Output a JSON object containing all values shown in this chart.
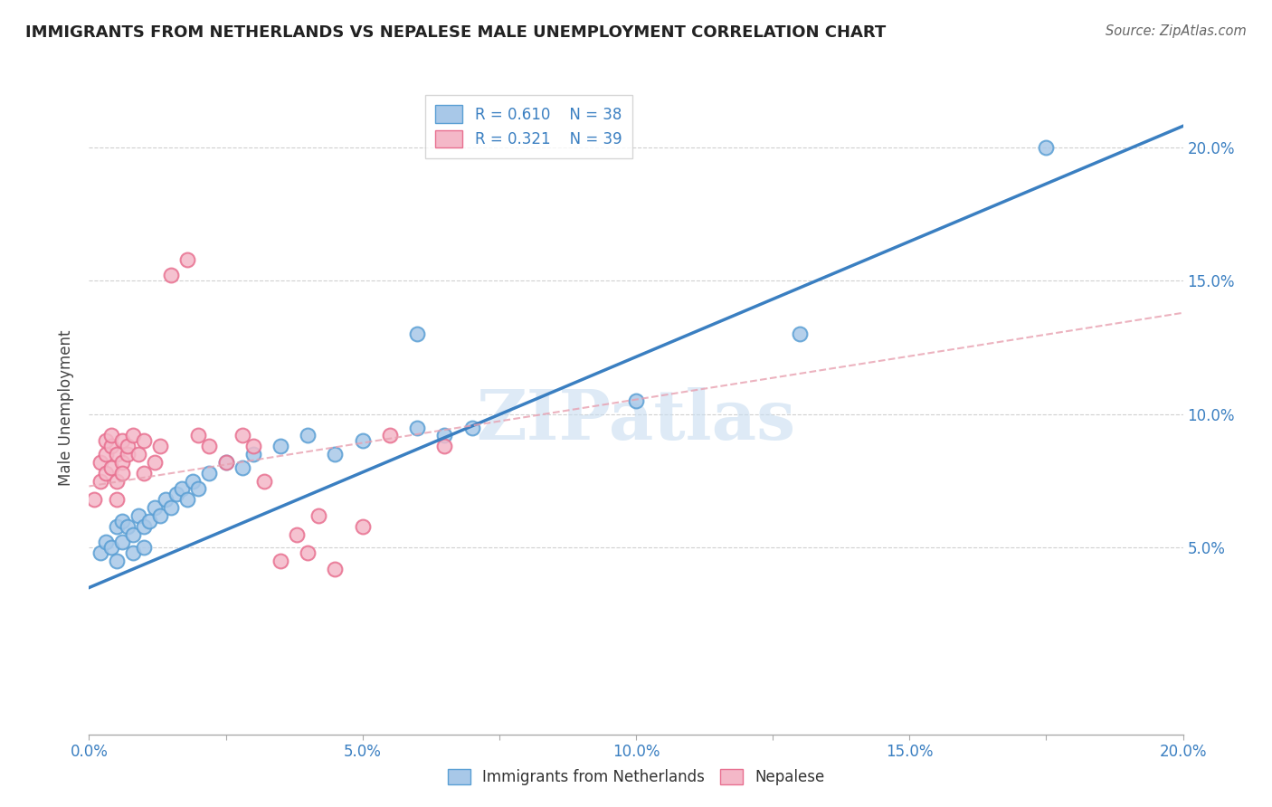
{
  "title": "IMMIGRANTS FROM NETHERLANDS VS NEPALESE MALE UNEMPLOYMENT CORRELATION CHART",
  "source": "Source: ZipAtlas.com",
  "ylabel": "Male Unemployment",
  "xlim": [
    0.0,
    0.2
  ],
  "ylim": [
    -0.02,
    0.225
  ],
  "plot_ylim": [
    -0.02,
    0.225
  ],
  "xtick_labels": [
    "0.0%",
    "",
    "5.0%",
    "",
    "10.0%",
    "",
    "15.0%",
    "",
    "20.0%"
  ],
  "xtick_vals": [
    0.0,
    0.025,
    0.05,
    0.075,
    0.1,
    0.125,
    0.15,
    0.175,
    0.2
  ],
  "xtick_display_labels": [
    "0.0%",
    "20.0%"
  ],
  "xtick_display_vals": [
    0.0,
    0.2
  ],
  "ytick_labels": [
    "5.0%",
    "10.0%",
    "15.0%",
    "20.0%"
  ],
  "ytick_vals": [
    0.05,
    0.1,
    0.15,
    0.2
  ],
  "legend_r_blue": "R = 0.610",
  "legend_n_blue": "N = 38",
  "legend_r_pink": "R = 0.321",
  "legend_n_pink": "N = 39",
  "legend_label_blue": "Immigrants from Netherlands",
  "legend_label_pink": "Nepalese",
  "watermark": "ZIPatlas",
  "blue_color": "#a8c8e8",
  "blue_edge_color": "#5a9fd4",
  "pink_color": "#f4b8c8",
  "pink_edge_color": "#e87090",
  "blue_line_color": "#3a7fc1",
  "pink_line_color": "#e8a0b0",
  "grid_color": "#d0d0d0",
  "bg_color": "#ffffff",
  "text_color_blue": "#3a7fc1",
  "blue_scatter": [
    [
      0.002,
      0.048
    ],
    [
      0.003,
      0.052
    ],
    [
      0.004,
      0.05
    ],
    [
      0.005,
      0.058
    ],
    [
      0.005,
      0.045
    ],
    [
      0.006,
      0.06
    ],
    [
      0.006,
      0.052
    ],
    [
      0.007,
      0.058
    ],
    [
      0.008,
      0.055
    ],
    [
      0.008,
      0.048
    ],
    [
      0.009,
      0.062
    ],
    [
      0.01,
      0.058
    ],
    [
      0.01,
      0.05
    ],
    [
      0.011,
      0.06
    ],
    [
      0.012,
      0.065
    ],
    [
      0.013,
      0.062
    ],
    [
      0.014,
      0.068
    ],
    [
      0.015,
      0.065
    ],
    [
      0.016,
      0.07
    ],
    [
      0.017,
      0.072
    ],
    [
      0.018,
      0.068
    ],
    [
      0.019,
      0.075
    ],
    [
      0.02,
      0.072
    ],
    [
      0.022,
      0.078
    ],
    [
      0.025,
      0.082
    ],
    [
      0.028,
      0.08
    ],
    [
      0.03,
      0.085
    ],
    [
      0.035,
      0.088
    ],
    [
      0.04,
      0.092
    ],
    [
      0.045,
      0.085
    ],
    [
      0.05,
      0.09
    ],
    [
      0.06,
      0.095
    ],
    [
      0.065,
      0.092
    ],
    [
      0.07,
      0.095
    ],
    [
      0.1,
      0.105
    ],
    [
      0.13,
      0.13
    ],
    [
      0.175,
      0.2
    ],
    [
      0.06,
      0.13
    ]
  ],
  "pink_scatter": [
    [
      0.001,
      0.068
    ],
    [
      0.002,
      0.075
    ],
    [
      0.002,
      0.082
    ],
    [
      0.003,
      0.078
    ],
    [
      0.003,
      0.085
    ],
    [
      0.003,
      0.09
    ],
    [
      0.004,
      0.08
    ],
    [
      0.004,
      0.088
    ],
    [
      0.004,
      0.092
    ],
    [
      0.005,
      0.085
    ],
    [
      0.005,
      0.075
    ],
    [
      0.005,
      0.068
    ],
    [
      0.006,
      0.082
    ],
    [
      0.006,
      0.078
    ],
    [
      0.006,
      0.09
    ],
    [
      0.007,
      0.085
    ],
    [
      0.007,
      0.088
    ],
    [
      0.008,
      0.092
    ],
    [
      0.009,
      0.085
    ],
    [
      0.01,
      0.078
    ],
    [
      0.01,
      0.09
    ],
    [
      0.012,
      0.082
    ],
    [
      0.013,
      0.088
    ],
    [
      0.015,
      0.152
    ],
    [
      0.018,
      0.158
    ],
    [
      0.02,
      0.092
    ],
    [
      0.022,
      0.088
    ],
    [
      0.025,
      0.082
    ],
    [
      0.028,
      0.092
    ],
    [
      0.03,
      0.088
    ],
    [
      0.032,
      0.075
    ],
    [
      0.035,
      0.045
    ],
    [
      0.038,
      0.055
    ],
    [
      0.04,
      0.048
    ],
    [
      0.042,
      0.062
    ],
    [
      0.045,
      0.042
    ],
    [
      0.05,
      0.058
    ],
    [
      0.055,
      0.092
    ],
    [
      0.065,
      0.088
    ]
  ],
  "blue_line": {
    "x0": 0.0,
    "y0": 0.035,
    "x1": 0.2,
    "y1": 0.208
  },
  "pink_line": {
    "x0": 0.0,
    "y0": 0.073,
    "x1": 0.2,
    "y1": 0.138
  }
}
